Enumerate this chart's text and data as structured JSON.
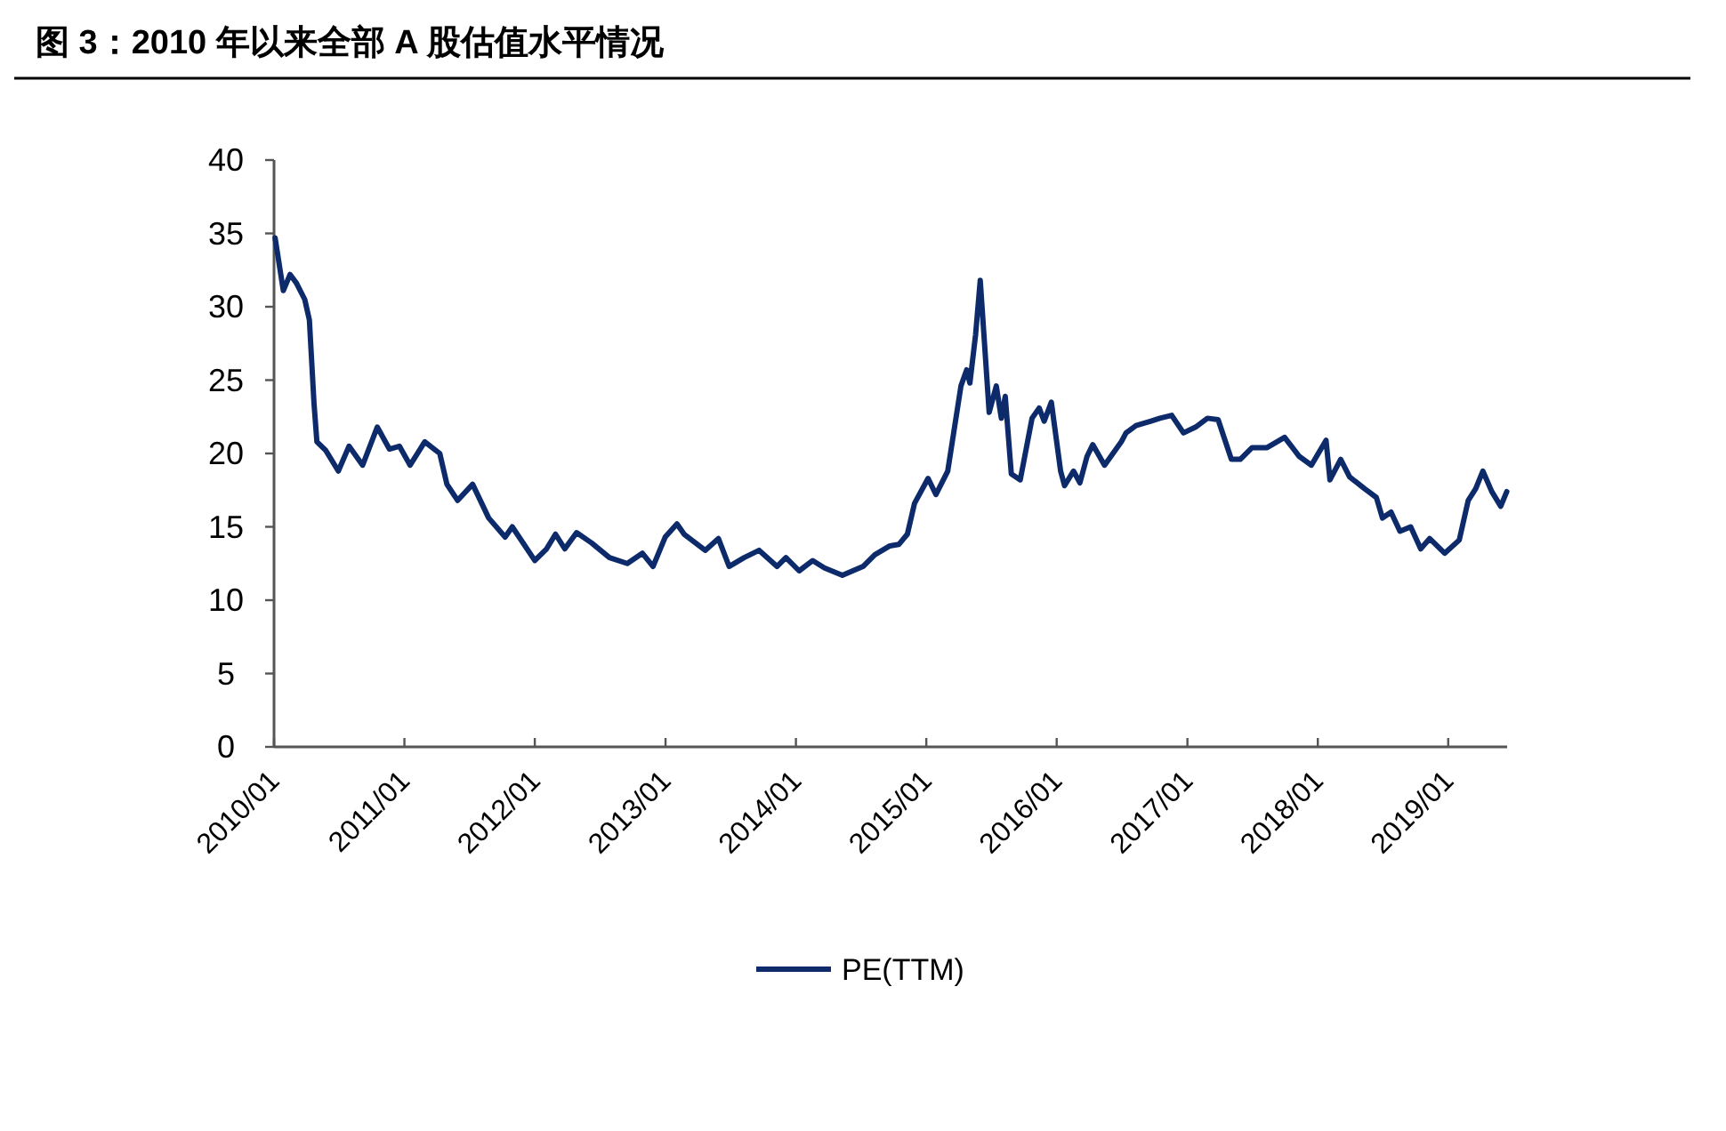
{
  "chart_data": {
    "type": "line",
    "title": "图 3：2010 年以来全部 A 股估值水平情况",
    "x": [
      "2010-01-04",
      "2010-01-27",
      "2010-02-15",
      "2010-03-05",
      "2010-03-28",
      "2010-04-10",
      "2010-04-23",
      "2010-05-01",
      "2010-05-26",
      "2010-06-30",
      "2010-07-30",
      "2010-09-06",
      "2010-10-17",
      "2010-11-20",
      "2010-12-18",
      "2011-01-17",
      "2011-02-27",
      "2011-04-10",
      "2011-04-30",
      "2011-05-30",
      "2011-07-11",
      "2011-08-25",
      "2011-10-10",
      "2011-10-30",
      "2012-01-01",
      "2012-02-03",
      "2012-02-28",
      "2012-03-25",
      "2012-04-27",
      "2012-06-08",
      "2012-07-28",
      "2012-09-16",
      "2012-10-28",
      "2012-11-27",
      "2012-12-31",
      "2013-02-02",
      "2013-02-22",
      "2013-04-22",
      "2013-05-29",
      "2013-06-28",
      "2013-08-09",
      "2013-09-20",
      "2013-11-09",
      "2013-12-04",
      "2014-01-10",
      "2014-02-17",
      "2014-03-22",
      "2014-05-11",
      "2014-07-08",
      "2014-08-10",
      "2014-09-21",
      "2014-10-16",
      "2014-11-09",
      "2014-11-29",
      "2015-01-06",
      "2015-01-28",
      "2015-03-02",
      "2015-04-08",
      "2015-04-24",
      "2015-05-03",
      "2015-05-19",
      "2015-06-01",
      "2015-06-26",
      "2015-07-16",
      "2015-07-30",
      "2015-08-10",
      "2015-08-27",
      "2015-09-21",
      "2015-10-24",
      "2015-11-13",
      "2015-11-27",
      "2015-12-17",
      "2016-01-12",
      "2016-01-23",
      "2016-02-17",
      "2016-03-06",
      "2016-03-26",
      "2016-04-11",
      "2016-05-14",
      "2016-06-30",
      "2016-07-13",
      "2016-08-10",
      "2016-09-21",
      "2016-10-16",
      "2016-11-18",
      "2016-12-21",
      "2017-01-24",
      "2017-02-26",
      "2017-03-28",
      "2017-05-04",
      "2017-05-29",
      "2017-07-01",
      "2017-08-12",
      "2017-09-30",
      "2017-11-10",
      "2017-12-14",
      "2018-01-24",
      "2018-02-04",
      "2018-03-06",
      "2018-03-31",
      "2018-05-12",
      "2018-06-14",
      "2018-07-01",
      "2018-07-25",
      "2018-08-19",
      "2018-09-18",
      "2018-10-16",
      "2018-11-10",
      "2018-12-22",
      "2019-02-01",
      "2019-02-26",
      "2019-03-19",
      "2019-04-08",
      "2019-05-03",
      "2019-05-28",
      "2019-06-14"
    ],
    "series": [
      {
        "name": "PE(TTM)",
        "color": "#0d2b6b",
        "values": [
          34.7,
          31.1,
          32.2,
          31.6,
          30.5,
          29.1,
          23.4,
          20.8,
          20.2,
          18.8,
          20.5,
          19.2,
          21.8,
          20.3,
          20.5,
          19.2,
          20.8,
          20.0,
          17.9,
          16.8,
          17.9,
          15.6,
          14.3,
          15.0,
          12.7,
          13.5,
          14.5,
          13.5,
          14.6,
          13.9,
          12.9,
          12.5,
          13.2,
          12.3,
          14.3,
          15.2,
          14.5,
          13.4,
          14.2,
          12.3,
          12.9,
          13.4,
          12.3,
          12.9,
          12.0,
          12.7,
          12.2,
          11.7,
          12.3,
          13.1,
          13.7,
          13.8,
          14.5,
          16.6,
          18.3,
          17.2,
          18.8,
          24.6,
          25.7,
          24.8,
          28.1,
          31.8,
          22.8,
          24.6,
          22.4,
          23.9,
          18.6,
          18.2,
          22.4,
          23.1,
          22.2,
          23.5,
          18.8,
          17.8,
          18.8,
          18.0,
          19.8,
          20.6,
          19.2,
          20.8,
          21.4,
          21.9,
          22.2,
          22.4,
          22.6,
          21.4,
          21.8,
          22.4,
          22.3,
          19.6,
          19.6,
          20.4,
          20.4,
          21.1,
          19.8,
          19.2,
          20.9,
          18.2,
          19.6,
          18.4,
          17.6,
          17.0,
          15.6,
          16.0,
          14.7,
          15.0,
          13.5,
          14.2,
          13.2,
          14.1,
          16.8,
          17.6,
          18.8,
          17.4,
          16.4,
          17.4
        ]
      }
    ],
    "xlim": [
      "2010-01-01",
      "2019-06-15"
    ],
    "xticks": [
      {
        "value": "2010-01-01",
        "label": "2010/01"
      },
      {
        "value": "2011-01-01",
        "label": "2011/01"
      },
      {
        "value": "2012-01-01",
        "label": "2012/01"
      },
      {
        "value": "2013-01-01",
        "label": "2013/01"
      },
      {
        "value": "2014-01-01",
        "label": "2014/01"
      },
      {
        "value": "2015-01-01",
        "label": "2015/01"
      },
      {
        "value": "2016-01-01",
        "label": "2016/01"
      },
      {
        "value": "2017-01-01",
        "label": "2017/01"
      },
      {
        "value": "2018-01-01",
        "label": "2018/01"
      },
      {
        "value": "2019-01-01",
        "label": "2019/01"
      }
    ],
    "ylim": [
      0,
      40
    ],
    "yticks": [
      0,
      5,
      10,
      15,
      20,
      25,
      30,
      35,
      40
    ],
    "legend": "bottom"
  }
}
